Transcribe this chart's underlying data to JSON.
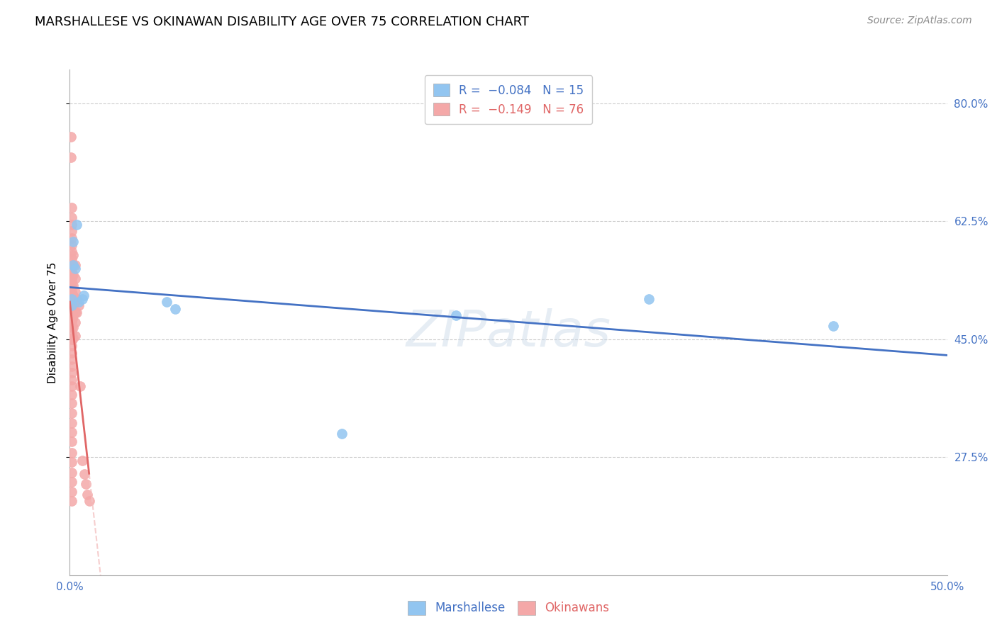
{
  "title": "MARSHALLESE VS OKINAWAN DISABILITY AGE OVER 75 CORRELATION CHART",
  "source": "Source: ZipAtlas.com",
  "ylabel": "Disability Age Over 75",
  "watermark": "ZIPatlas",
  "marshallese_color": "#92c5f0",
  "okinawan_color": "#f4a8a8",
  "trend_marshallese_color": "#4472c4",
  "trend_okinawan_color": "#e06666",
  "trend_okinawan_extended_color": "#f4c2c2",
  "background_color": "#ffffff",
  "grid_color": "#cccccc",
  "x_min": 0.0,
  "x_max": 0.5,
  "y_min": 0.1,
  "y_max": 0.85,
  "yticks": [
    0.275,
    0.45,
    0.625,
    0.8
  ],
  "ytick_labels": [
    "27.5%",
    "45.0%",
    "62.5%",
    "80.0%"
  ],
  "marshallese_points": [
    [
      0.001,
      0.51
    ],
    [
      0.001,
      0.5
    ],
    [
      0.002,
      0.595
    ],
    [
      0.002,
      0.56
    ],
    [
      0.003,
      0.555
    ],
    [
      0.004,
      0.62
    ],
    [
      0.005,
      0.505
    ],
    [
      0.007,
      0.51
    ],
    [
      0.008,
      0.515
    ],
    [
      0.055,
      0.505
    ],
    [
      0.06,
      0.495
    ],
    [
      0.155,
      0.31
    ],
    [
      0.22,
      0.485
    ],
    [
      0.33,
      0.51
    ],
    [
      0.435,
      0.47
    ]
  ],
  "okinawan_points": [
    [
      0.0005,
      0.75
    ],
    [
      0.0005,
      0.72
    ],
    [
      0.001,
      0.645
    ],
    [
      0.001,
      0.63
    ],
    [
      0.001,
      0.62
    ],
    [
      0.001,
      0.61
    ],
    [
      0.001,
      0.6
    ],
    [
      0.001,
      0.59
    ],
    [
      0.001,
      0.58
    ],
    [
      0.001,
      0.57
    ],
    [
      0.001,
      0.56
    ],
    [
      0.001,
      0.55
    ],
    [
      0.001,
      0.54
    ],
    [
      0.001,
      0.535
    ],
    [
      0.001,
      0.528
    ],
    [
      0.001,
      0.52
    ],
    [
      0.001,
      0.515
    ],
    [
      0.001,
      0.508
    ],
    [
      0.001,
      0.5
    ],
    [
      0.001,
      0.495
    ],
    [
      0.001,
      0.49
    ],
    [
      0.001,
      0.483
    ],
    [
      0.001,
      0.476
    ],
    [
      0.001,
      0.468
    ],
    [
      0.001,
      0.46
    ],
    [
      0.001,
      0.45
    ],
    [
      0.001,
      0.44
    ],
    [
      0.001,
      0.43
    ],
    [
      0.001,
      0.42
    ],
    [
      0.001,
      0.41
    ],
    [
      0.001,
      0.4
    ],
    [
      0.001,
      0.39
    ],
    [
      0.001,
      0.38
    ],
    [
      0.001,
      0.368
    ],
    [
      0.001,
      0.355
    ],
    [
      0.001,
      0.34
    ],
    [
      0.001,
      0.326
    ],
    [
      0.001,
      0.312
    ],
    [
      0.001,
      0.298
    ],
    [
      0.001,
      0.282
    ],
    [
      0.001,
      0.268
    ],
    [
      0.001,
      0.252
    ],
    [
      0.001,
      0.238
    ],
    [
      0.001,
      0.224
    ],
    [
      0.001,
      0.21
    ],
    [
      0.0015,
      0.48
    ],
    [
      0.0015,
      0.45
    ],
    [
      0.002,
      0.575
    ],
    [
      0.002,
      0.56
    ],
    [
      0.002,
      0.545
    ],
    [
      0.002,
      0.53
    ],
    [
      0.002,
      0.515
    ],
    [
      0.002,
      0.5
    ],
    [
      0.002,
      0.485
    ],
    [
      0.002,
      0.468
    ],
    [
      0.002,
      0.452
    ],
    [
      0.003,
      0.56
    ],
    [
      0.003,
      0.54
    ],
    [
      0.003,
      0.52
    ],
    [
      0.003,
      0.505
    ],
    [
      0.003,
      0.49
    ],
    [
      0.003,
      0.475
    ],
    [
      0.003,
      0.455
    ],
    [
      0.004,
      0.51
    ],
    [
      0.004,
      0.49
    ],
    [
      0.005,
      0.5
    ],
    [
      0.006,
      0.38
    ],
    [
      0.007,
      0.27
    ],
    [
      0.0085,
      0.25
    ],
    [
      0.009,
      0.235
    ],
    [
      0.01,
      0.22
    ],
    [
      0.011,
      0.21
    ]
  ],
  "title_fontsize": 13,
  "source_fontsize": 10,
  "legend_fontsize": 12,
  "axis_label_fontsize": 11,
  "tick_fontsize": 11
}
